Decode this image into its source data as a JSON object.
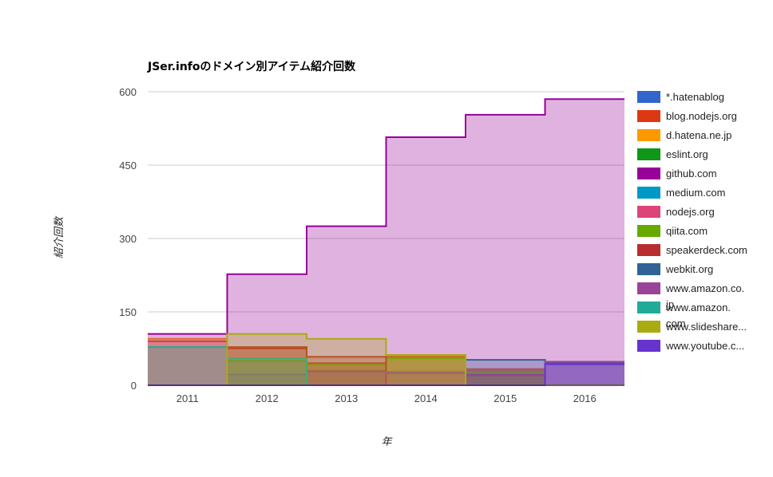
{
  "chart_data": {
    "type": "area",
    "stepped": true,
    "title": "JSer.infoのドメイン別アイテム紹介回数",
    "xlabel": "年",
    "ylabel": "紹介回数",
    "categories": [
      "2011",
      "2012",
      "2013",
      "2014",
      "2015",
      "2016"
    ],
    "ylim": [
      0,
      600
    ],
    "yticks": [
      0,
      150,
      300,
      450,
      600
    ],
    "grid": true,
    "legend_position": "right",
    "series": [
      {
        "name": "*.hatenablog",
        "legend_lines": [
          "*.hatenablog"
        ],
        "color": "#3366cc",
        "values": [
          0,
          0,
          0,
          0,
          0,
          0
        ]
      },
      {
        "name": "blog.nodejs.org",
        "legend_lines": [
          "blog.nodejs.org"
        ],
        "color": "#dc3912",
        "values": [
          90,
          75,
          45,
          58,
          33,
          0
        ]
      },
      {
        "name": "d.hatena.ne.jp",
        "legend_lines": [
          "d.hatena.ne.jp"
        ],
        "color": "#ff9900",
        "values": [
          95,
          0,
          0,
          60,
          32,
          0
        ]
      },
      {
        "name": "eslint.org",
        "legend_lines": [
          "eslint.org"
        ],
        "color": "#109618",
        "values": [
          0,
          0,
          0,
          0,
          20,
          0
        ]
      },
      {
        "name": "github.com",
        "legend_lines": [
          "github.com"
        ],
        "color": "#990099",
        "values": [
          105,
          227,
          325,
          507,
          553,
          585
        ]
      },
      {
        "name": "medium.com",
        "legend_lines": [
          "medium.com"
        ],
        "color": "#0099c6",
        "values": [
          0,
          0,
          0,
          0,
          0,
          0
        ]
      },
      {
        "name": "nodejs.org",
        "legend_lines": [
          "nodejs.org"
        ],
        "color": "#dd4477",
        "values": [
          0,
          0,
          30,
          28,
          30,
          0
        ]
      },
      {
        "name": "qiita.com",
        "legend_lines": [
          "qiita.com"
        ],
        "color": "#66aa00",
        "values": [
          0,
          50,
          43,
          55,
          28,
          0
        ]
      },
      {
        "name": "speakerdeck.com",
        "legend_lines": [
          "speakerdeck.com"
        ],
        "color": "#b82e2e",
        "values": [
          0,
          78,
          58,
          0,
          0,
          0
        ]
      },
      {
        "name": "webkit.org",
        "legend_lines": [
          "webkit.org"
        ],
        "color": "#316395",
        "values": [
          0,
          0,
          0,
          0,
          52,
          45
        ]
      },
      {
        "name": "www.amazon.co.jp",
        "legend_lines": [
          "www.amazon.co.",
          "jp"
        ],
        "color": "#994499",
        "values": [
          0,
          22,
          28,
          25,
          22,
          48
        ]
      },
      {
        "name": "www.amazon.com",
        "legend_lines": [
          "www.amazon.",
          "com"
        ],
        "color": "#22aa99",
        "values": [
          78,
          55,
          0,
          0,
          0,
          0
        ]
      },
      {
        "name": "www.slideshare...",
        "legend_lines": [
          "www.slideshare..."
        ],
        "color": "#aaaa11",
        "values": [
          0,
          105,
          95,
          62,
          0,
          0
        ]
      },
      {
        "name": "www.youtube.c...",
        "legend_lines": [
          "www.youtube.c..."
        ],
        "color": "#6633cc",
        "values": [
          0,
          0,
          0,
          0,
          0,
          43
        ]
      }
    ]
  }
}
